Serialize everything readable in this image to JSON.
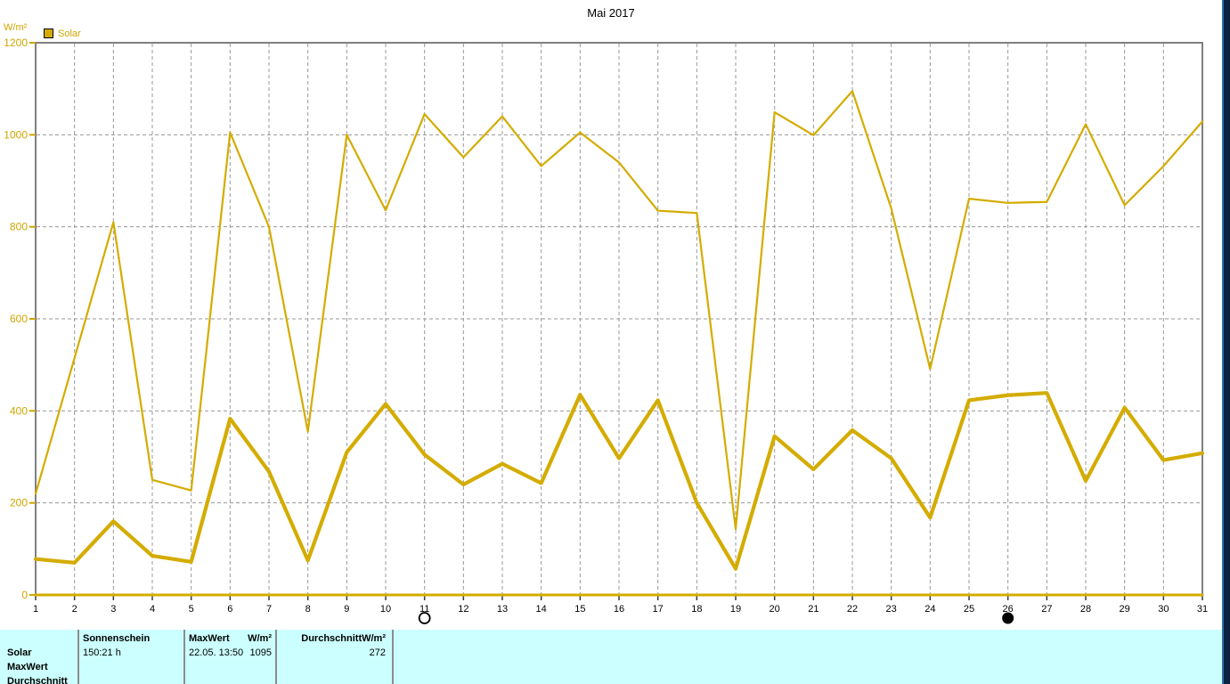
{
  "title_bar": {
    "title": "Mai 2017"
  },
  "colors": {
    "accent": "#D4AC00",
    "axis_label": "#CFA500",
    "table_bg": "#CCFFFF",
    "grid": "#989898",
    "border": "#808080",
    "edge_dark": "#0B2240",
    "edge_light": "#2E6DA4"
  },
  "chart_data": {
    "type": "line",
    "title": "Mai 2017",
    "ylabel": "W/m²",
    "xlabel": "",
    "legend": [
      "Solar"
    ],
    "legend_position": "top-left",
    "grid": true,
    "xlim": [
      1,
      31
    ],
    "ylim": [
      0,
      1200
    ],
    "y_ticks": [
      0,
      200,
      400,
      600,
      800,
      1000,
      1200
    ],
    "x": [
      1,
      2,
      3,
      4,
      5,
      6,
      7,
      8,
      9,
      10,
      11,
      12,
      13,
      14,
      15,
      16,
      17,
      18,
      19,
      20,
      21,
      22,
      23,
      24,
      25,
      26,
      27,
      28,
      29,
      30,
      31
    ],
    "series": [
      {
        "name": "Solar Max (W/m²)",
        "role": "max",
        "values": [
          220,
          515,
          810,
          250,
          227,
          1005,
          800,
          355,
          1000,
          836,
          1045,
          951,
          1040,
          932,
          1005,
          940,
          835,
          830,
          143,
          1049,
          999,
          1095,
          840,
          491,
          861,
          852,
          854,
          1023,
          847,
          932,
          1029
        ]
      },
      {
        "name": "Solar Durchschnitt (W/m²)",
        "role": "average",
        "values": [
          78,
          70,
          160,
          85,
          72,
          383,
          268,
          75,
          310,
          415,
          305,
          240,
          285,
          243,
          435,
          297,
          423,
          200,
          57,
          345,
          273,
          358,
          297,
          168,
          423,
          434,
          439,
          248,
          407,
          293,
          308
        ]
      },
      {
        "name": "Solar Min (W/m²)",
        "role": "min",
        "values": [
          0,
          0,
          0,
          0,
          0,
          0,
          0,
          0,
          0,
          0,
          0,
          0,
          0,
          0,
          0,
          0,
          0,
          0,
          0,
          0,
          0,
          0,
          0,
          0,
          0,
          0,
          0,
          0,
          0,
          0,
          0
        ]
      }
    ],
    "moon_markers": [
      {
        "day": 11,
        "phase": "open"
      },
      {
        "day": 26,
        "phase": "filled"
      }
    ]
  },
  "table": {
    "row_labels": [
      "Solar",
      "MaxWert",
      "Durchschnitt"
    ],
    "sonnenschein_header": "Sonnenschein",
    "maxwert_header": "MaxWert",
    "maxwert_unit_header": "W/m²",
    "durchschnitt_header": "DurchschnittW/m²",
    "solar_sonnenschein": "150:21 h",
    "solar_maxwert_datetime": "22.05. 13:50",
    "solar_maxwert_value": "1095",
    "solar_durchschnitt_value": "272"
  }
}
